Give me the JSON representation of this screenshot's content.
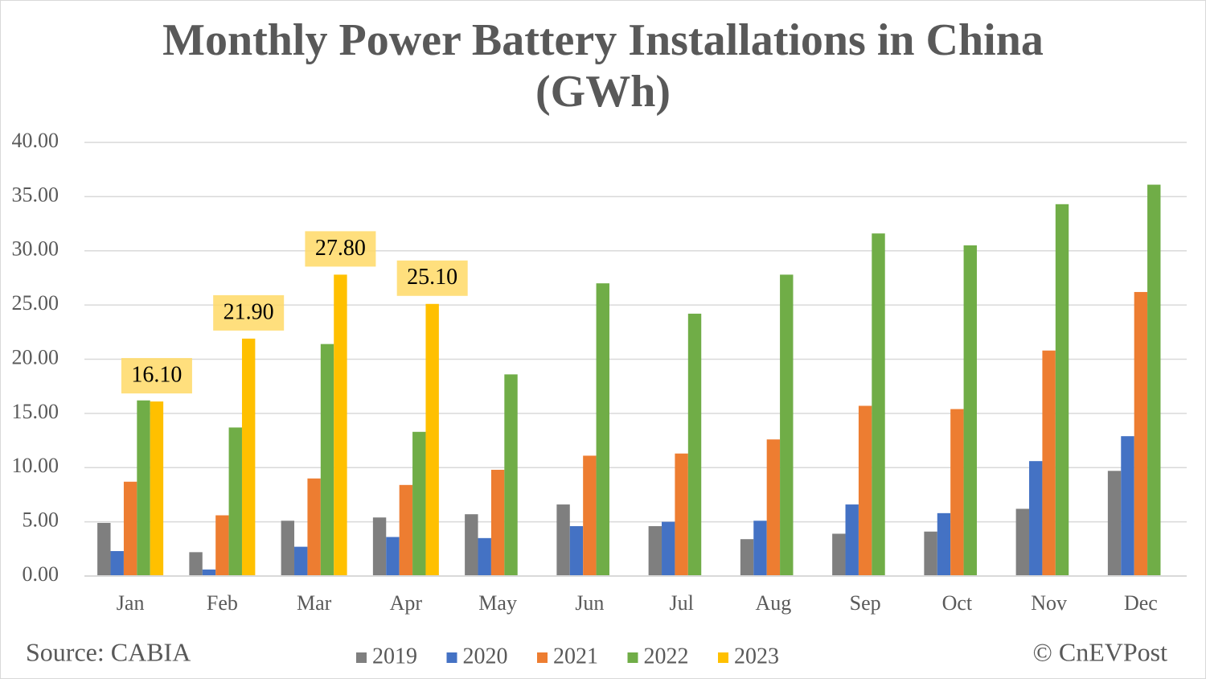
{
  "chart_data": {
    "type": "bar",
    "title": "Monthly Power Battery Installations in China (GWh)",
    "categories": [
      "Jan",
      "Feb",
      "Mar",
      "Apr",
      "May",
      "Jun",
      "Jul",
      "Aug",
      "Sep",
      "Oct",
      "Nov",
      "Dec"
    ],
    "series": [
      {
        "name": "2019",
        "color": "#7f7f7f",
        "values": [
          4.9,
          2.2,
          5.1,
          5.4,
          5.7,
          6.6,
          4.6,
          3.4,
          3.9,
          4.1,
          6.2,
          9.7
        ]
      },
      {
        "name": "2020",
        "color": "#4472c4",
        "values": [
          2.3,
          0.6,
          2.7,
          3.6,
          3.5,
          4.6,
          5.0,
          5.1,
          6.6,
          5.8,
          10.6,
          12.9
        ]
      },
      {
        "name": "2021",
        "color": "#ed7d31",
        "values": [
          8.7,
          5.6,
          9.0,
          8.4,
          9.8,
          11.1,
          11.3,
          12.6,
          15.7,
          15.4,
          20.8,
          26.2
        ]
      },
      {
        "name": "2022",
        "color": "#70ad47",
        "values": [
          16.2,
          13.7,
          21.4,
          13.3,
          18.6,
          27.0,
          24.2,
          27.8,
          31.6,
          30.5,
          34.3,
          36.1
        ]
      },
      {
        "name": "2023",
        "color": "#ffc000",
        "values": [
          16.1,
          21.9,
          27.8,
          25.1,
          null,
          null,
          null,
          null,
          null,
          null,
          null,
          null
        ],
        "value_labels": [
          "16.10",
          "21.90",
          "27.80",
          "25.10",
          null,
          null,
          null,
          null,
          null,
          null,
          null,
          null
        ]
      }
    ],
    "ylim": [
      0,
      40
    ],
    "yticks": [
      {
        "value": 0,
        "label": "0.00"
      },
      {
        "value": 5,
        "label": "5.00"
      },
      {
        "value": 10,
        "label": "10.00"
      },
      {
        "value": 15,
        "label": "15.00"
      },
      {
        "value": 20,
        "label": "20.00"
      },
      {
        "value": 25,
        "label": "25.00"
      },
      {
        "value": 30,
        "label": "30.00"
      },
      {
        "value": 35,
        "label": "35.00"
      },
      {
        "value": 40,
        "label": "40.00"
      }
    ],
    "grid": true,
    "source": "Source: CABIA",
    "credit": "© CnEVPost"
  }
}
